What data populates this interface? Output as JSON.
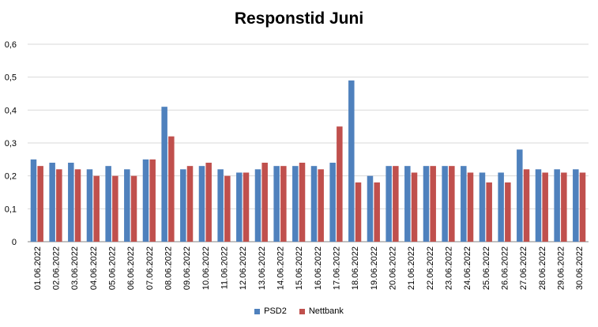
{
  "chart_data": {
    "type": "bar",
    "title": "Responstid Juni",
    "categories": [
      "01.06.2022",
      "02.06.2022",
      "03.06.2022",
      "04.06.2022",
      "05.06.2022",
      "06.06.2022",
      "07.06.2022",
      "08.06.2022",
      "09.06.2022",
      "10.06.2022",
      "11.06.2022",
      "12.06.2022",
      "13.06.2022",
      "14.06.2022",
      "15.06.2022",
      "16.06.2022",
      "17.06.2022",
      "18.06.2022",
      "19.06.2022",
      "20.06.2022",
      "21.06.2022",
      "22.06.2022",
      "23.06.2022",
      "24.06.2022",
      "25.06.2022",
      "26.06.2022",
      "27.06.2022",
      "28.06.2022",
      "29.06.2022",
      "30.06.2022"
    ],
    "series": [
      {
        "name": "PSD2",
        "color": "#4F81BD",
        "values": [
          0.25,
          0.24,
          0.24,
          0.22,
          0.23,
          0.22,
          0.25,
          0.41,
          0.22,
          0.23,
          0.22,
          0.21,
          0.22,
          0.23,
          0.23,
          0.23,
          0.24,
          0.49,
          0.2,
          0.23,
          0.23,
          0.23,
          0.23,
          0.23,
          0.21,
          0.21,
          0.28,
          0.22,
          0.22,
          0.22
        ]
      },
      {
        "name": "Nettbank",
        "color": "#C0504D",
        "values": [
          0.23,
          0.22,
          0.22,
          0.2,
          0.2,
          0.2,
          0.25,
          0.32,
          0.23,
          0.24,
          0.2,
          0.21,
          0.24,
          0.23,
          0.24,
          0.22,
          0.35,
          0.18,
          0.18,
          0.23,
          0.21,
          0.23,
          0.23,
          0.21,
          0.18,
          0.18,
          0.22,
          0.21,
          0.21,
          0.21
        ]
      }
    ],
    "yticks": [
      "0",
      "0,1",
      "0,2",
      "0,3",
      "0,4",
      "0,5",
      "0,6"
    ],
    "ylim": [
      0,
      0.6
    ],
    "grid": true,
    "legend": "bottom"
  }
}
